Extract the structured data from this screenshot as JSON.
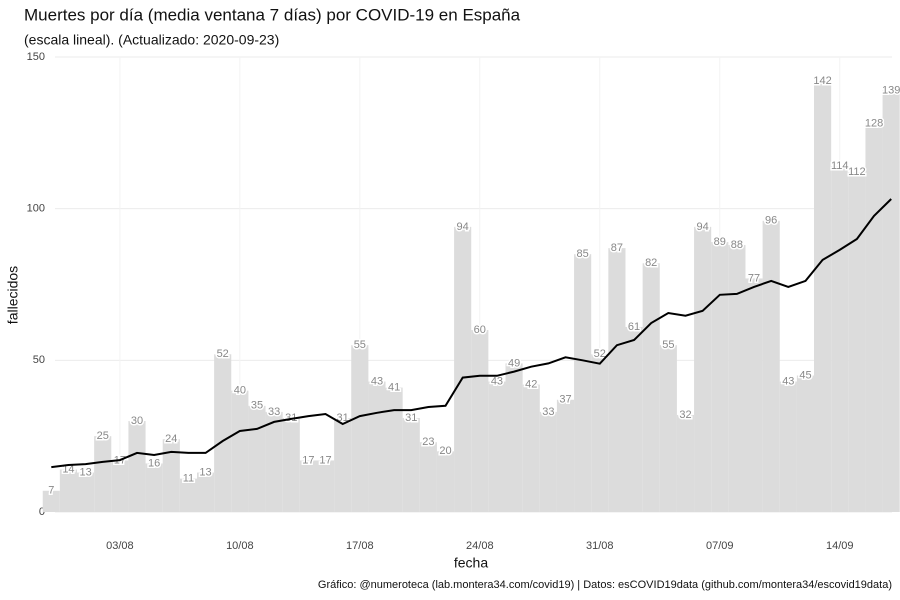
{
  "chart_data": {
    "type": "bar",
    "title": "Muertes por día (media ventana 7 días) por COVID-19 en España",
    "subtitle": "(escala lineal). (Actualizado: 2020-09-23)",
    "x_label": "fecha",
    "y_label": "fallecidos",
    "caption": "Gráfico: @numeroteca (lab.montera34.com/covid19) | Datos: esCOVID19data (github.com/montera34/escovid19data)",
    "x": [
      "30/07",
      "31/07",
      "01/08",
      "02/08",
      "03/08",
      "04/08",
      "05/08",
      "06/08",
      "07/08",
      "08/08",
      "09/08",
      "10/08",
      "11/08",
      "12/08",
      "13/08",
      "14/08",
      "15/08",
      "16/08",
      "17/08",
      "18/08",
      "19/08",
      "20/08",
      "21/08",
      "22/08",
      "23/08",
      "24/08",
      "25/08",
      "26/08",
      "27/08",
      "28/08",
      "29/08",
      "30/08",
      "31/08",
      "01/09",
      "02/09",
      "03/09",
      "04/09",
      "05/09",
      "06/09",
      "07/09",
      "08/09",
      "09/09",
      "10/09",
      "11/09",
      "12/09",
      "13/09",
      "14/09",
      "15/09",
      "16/09",
      "17/09"
    ],
    "xticks": [
      "03/08",
      "10/08",
      "17/08",
      "24/08",
      "31/08",
      "07/09",
      "14/09"
    ],
    "series": [
      {
        "type": "bar",
        "color": "#dcdcdc",
        "values": [
          7,
          14,
          13,
          25,
          17,
          30,
          16,
          24,
          11,
          13,
          52,
          40,
          35,
          33,
          31,
          17,
          17,
          31,
          55,
          43,
          41,
          31,
          23,
          20,
          94,
          60,
          43,
          49,
          42,
          33,
          37,
          85,
          52,
          87,
          61,
          82,
          55,
          32,
          94,
          89,
          88,
          77,
          96,
          43,
          45,
          142,
          114,
          112,
          128,
          139
        ]
      },
      {
        "type": "line",
        "color": "#000000",
        "values": [
          14.8,
          15.5,
          15.8,
          16.5,
          17.1,
          19.5,
          18.8,
          19.8,
          19.5,
          19.5,
          23.4,
          26.7,
          27.4,
          29.7,
          30.7,
          31.6,
          32.3,
          29.0,
          31.6,
          32.7,
          33.6,
          33.6,
          34.6,
          35.0,
          44.3,
          44.9,
          44.9,
          46.3,
          47.9,
          49.0,
          51.0,
          50.0,
          48.9,
          55.0,
          56.7,
          62.3,
          65.6,
          64.7,
          66.3,
          71.6,
          71.9,
          74.2,
          76.2,
          74.2,
          76.2,
          83.1,
          86.4,
          90.0,
          97.6,
          103.2
        ]
      }
    ],
    "ylim": [
      0,
      150
    ],
    "yticks": [
      0,
      50,
      100,
      150
    ],
    "grid": true
  }
}
